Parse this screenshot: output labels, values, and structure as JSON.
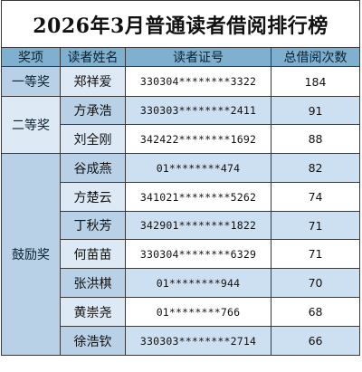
{
  "sheet": {
    "title": "2026年3月普通读者借阅排行榜",
    "headers": {
      "award": "奖项",
      "name": "读者姓名",
      "card_no": "读者证号",
      "total": "总借阅次数"
    },
    "awards": {
      "first": "一等奖",
      "second": "二等奖",
      "encourage": "鼓励奖"
    },
    "rows": [
      {
        "name": "郑祥爱",
        "card_no": "330304********3322",
        "total": "184"
      },
      {
        "name": "方承浩",
        "card_no": "330303********2411",
        "total": "91"
      },
      {
        "name": "刘全刚",
        "card_no": "342422********1692",
        "total": "88"
      },
      {
        "name": "谷成燕",
        "card_no": "01********474",
        "total": "82"
      },
      {
        "name": "方楚云",
        "card_no": "341021********5262",
        "total": "74"
      },
      {
        "name": "丁秋芳",
        "card_no": "342901********1822",
        "total": "71"
      },
      {
        "name": "何苗苗",
        "card_no": "330304********6329",
        "total": "71"
      },
      {
        "name": "张洪棋",
        "card_no": "01********944",
        "total": "70"
      },
      {
        "name": "黄崇尧",
        "card_no": "01********766",
        "total": "68"
      },
      {
        "name": "徐浩钦",
        "card_no": "330303********2714",
        "total": "66"
      }
    ],
    "colors": {
      "header_fill": "#7fb0cf",
      "award_fill_dark": "#b8d1e7",
      "award_fill_light": "#dde9f5",
      "row_shade": "#cde0f1",
      "border": "#3a3a3a"
    }
  }
}
